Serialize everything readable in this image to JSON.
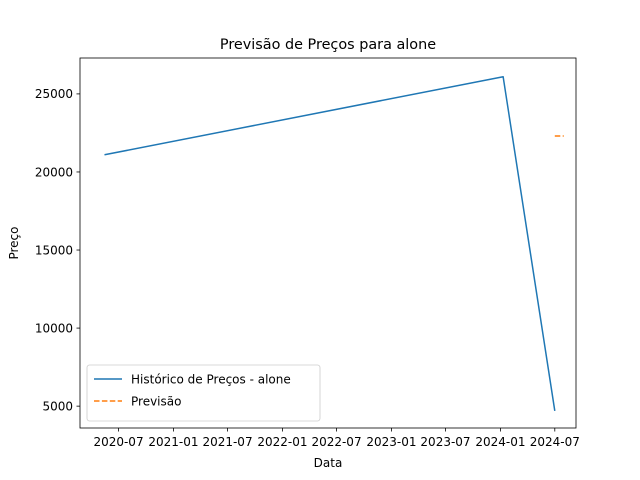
{
  "chart_data": {
    "type": "line",
    "title": "Previsão de Preços para alone",
    "xlabel": "Data",
    "ylabel": "Preço",
    "x_ticks": [
      "2020-07",
      "2021-01",
      "2021-07",
      "2022-01",
      "2022-07",
      "2023-01",
      "2023-07",
      "2024-01",
      "2024-07"
    ],
    "y_ticks": [
      5000,
      10000,
      15000,
      20000,
      25000
    ],
    "xlim": [
      "2020-02-23",
      "2024-09-10"
    ],
    "ylim": [
      3600,
      27300
    ],
    "grid": false,
    "legend_position": "lower-left",
    "series": [
      {
        "name": "Histórico de Preços - alone",
        "color": "#1f77b4",
        "dash": "solid",
        "points": [
          {
            "x": "2020-05-15",
            "y": 21100
          },
          {
            "x": "2024-01-10",
            "y": 26100
          },
          {
            "x": "2024-07-01",
            "y": 4700
          }
        ]
      },
      {
        "name": "Previsão",
        "color": "#ff7f0e",
        "dash": "dashed",
        "points": [
          {
            "x": "2024-07-01",
            "y": 22300
          },
          {
            "x": "2024-07-31",
            "y": 22300
          }
        ]
      }
    ]
  }
}
